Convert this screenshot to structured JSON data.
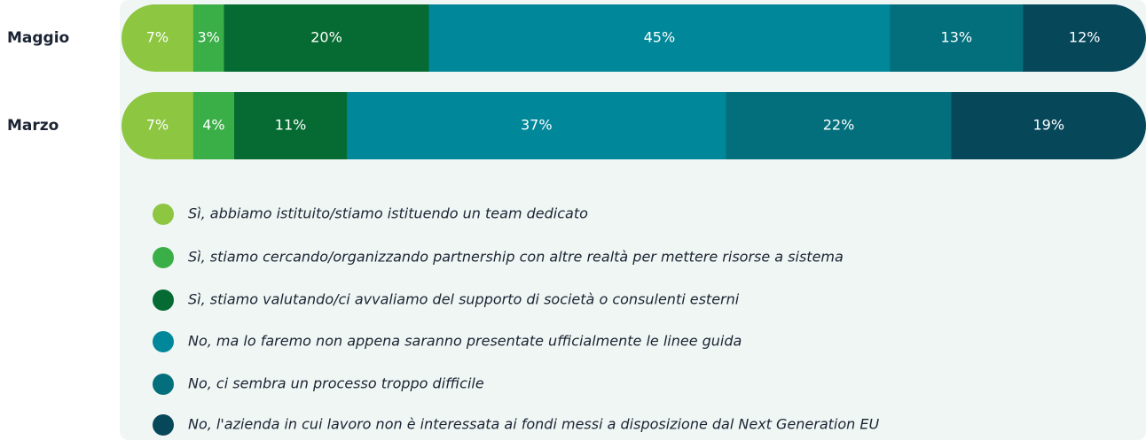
{
  "chart_data": {
    "type": "stacked-bar-horizontal",
    "categories": [
      "Maggio",
      "Marzo"
    ],
    "series": [
      {
        "name": "Sì, abbiamo istituito/stiamo istituendo un team dedicato",
        "color": "#8dc641",
        "values": [
          7,
          7
        ],
        "value_labels": [
          "7%",
          "7%"
        ]
      },
      {
        "name": "Sì, stiamo cercando/organizzando partnership con altre realtà per mettere risorse a sistema",
        "color": "#3aae47",
        "values": [
          3,
          4
        ],
        "value_labels": [
          "3%",
          "4%"
        ]
      },
      {
        "name": "Sì, stiamo valutando/ci avvaliamo del supporto di società o consulenti esterni",
        "color": "#066b32",
        "values": [
          20,
          11
        ],
        "value_labels": [
          "20%",
          "11%"
        ]
      },
      {
        "name": "No, ma lo faremo non appena saranno presentate ufficialmente le linee guida",
        "color": "#01879a",
        "values": [
          45,
          37
        ],
        "value_labels": [
          "45%",
          "37%"
        ]
      },
      {
        "name": "No, ci sembra un processo troppo difficile",
        "color": "#036f7c",
        "values": [
          13,
          22
        ],
        "value_labels": [
          "13%",
          "22%"
        ]
      },
      {
        "name": "No, l'azienda in cui lavoro non è interessata ai fondi messi a disposizione dal Next Generation EU",
        "color": "#06475a",
        "values": [
          12,
          19
        ],
        "value_labels": [
          "12%",
          "19%"
        ]
      }
    ]
  }
}
